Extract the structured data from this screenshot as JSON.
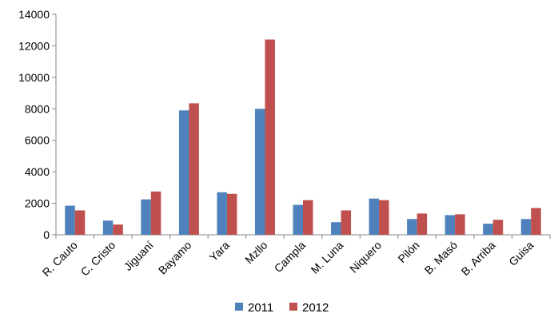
{
  "chart_data": {
    "type": "bar",
    "categories": [
      "R. Cauto",
      "C. Cristo",
      "Jiguaní",
      "Bayamo",
      "Yara",
      "Mzllo",
      "Campla",
      "M. Luna",
      "Niquero",
      "Pilón",
      "B. Masó",
      "B. Arriba",
      "Guisa"
    ],
    "series": [
      {
        "name": "2011",
        "color": "#4F81BD",
        "values": [
          1850,
          900,
          2250,
          7900,
          2700,
          8000,
          1900,
          800,
          2300,
          1000,
          1250,
          700,
          1000
        ]
      },
      {
        "name": "2012",
        "color": "#C0504D",
        "values": [
          1550,
          650,
          2750,
          8350,
          2600,
          12400,
          2200,
          1550,
          2200,
          1350,
          1300,
          950,
          1700
        ]
      }
    ],
    "yticks": [
      "0",
      "2000",
      "4000",
      "6000",
      "8000",
      "10000",
      "12000",
      "14000"
    ],
    "ylim": [
      0,
      14000
    ],
    "grid": false,
    "legend_position": "bottom"
  }
}
